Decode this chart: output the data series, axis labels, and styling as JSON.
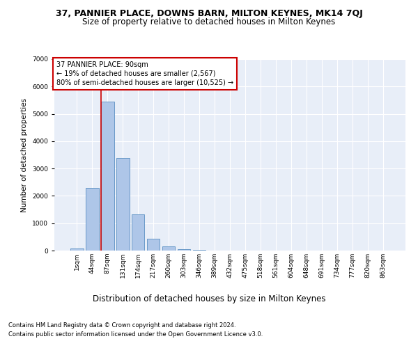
{
  "title1": "37, PANNIER PLACE, DOWNS BARN, MILTON KEYNES, MK14 7QJ",
  "title2": "Size of property relative to detached houses in Milton Keynes",
  "xlabel": "Distribution of detached houses by size in Milton Keynes",
  "ylabel": "Number of detached properties",
  "footnote1": "Contains HM Land Registry data © Crown copyright and database right 2024.",
  "footnote2": "Contains public sector information licensed under the Open Government Licence v3.0.",
  "bar_labels": [
    "1sqm",
    "44sqm",
    "87sqm",
    "131sqm",
    "174sqm",
    "217sqm",
    "260sqm",
    "303sqm",
    "346sqm",
    "389sqm",
    "432sqm",
    "475sqm",
    "518sqm",
    "561sqm",
    "604sqm",
    "648sqm",
    "691sqm",
    "734sqm",
    "777sqm",
    "820sqm",
    "863sqm"
  ],
  "bar_values": [
    70,
    2280,
    5450,
    3380,
    1320,
    430,
    160,
    55,
    20,
    8,
    3,
    2,
    1,
    1,
    0,
    0,
    0,
    0,
    0,
    0,
    0
  ],
  "bar_color": "#aec6e8",
  "bar_edge_color": "#5a8fc2",
  "background_color": "#e8eef8",
  "grid_color": "#ffffff",
  "vline_x_index": 2,
  "vline_color": "#cc0000",
  "annotation_text": "37 PANNIER PLACE: 90sqm\n← 19% of detached houses are smaller (2,567)\n80% of semi-detached houses are larger (10,525) →",
  "annotation_box_color": "#ffffff",
  "annotation_box_edge": "#cc0000",
  "ylim": [
    0,
    7000
  ],
  "yticks": [
    0,
    1000,
    2000,
    3000,
    4000,
    5000,
    6000,
    7000
  ],
  "title1_fontsize": 9,
  "title2_fontsize": 8.5,
  "xlabel_fontsize": 8.5,
  "ylabel_fontsize": 7.5,
  "tick_fontsize": 6.5,
  "annotation_fontsize": 7,
  "footnote_fontsize": 6
}
